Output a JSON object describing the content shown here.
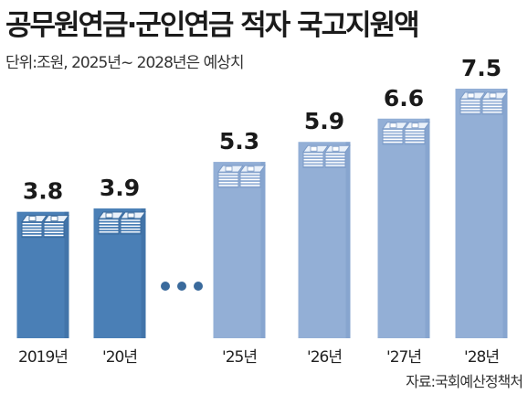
{
  "title": "공무원연금·군인연금 적자 국고지원액",
  "subtitle": "단위:조원, 2025년~ 2028년은 예상치",
  "source": "자료:국회예산정책처",
  "colors": {
    "actual_bar": "#4a7fb6",
    "actual_bar_dark": "#3a6a9c",
    "forecast_bar": "#93afd6",
    "forecast_bar_dark": "#7c9bc7",
    "gap_dots": "#3a6a9c"
  },
  "chart_data": {
    "type": "bar",
    "categories": [
      "2019년",
      "'20년",
      "'25년",
      "'26년",
      "'27년",
      "'28년"
    ],
    "values": [
      3.8,
      3.9,
      5.3,
      5.9,
      6.6,
      7.5
    ],
    "value_labels": [
      "3.8",
      "3.9",
      "5.3",
      "5.9",
      "6.6",
      "7.5"
    ],
    "forecast": [
      false,
      false,
      true,
      true,
      true,
      true
    ],
    "gap_marker_after_index": 1,
    "ylim": [
      0,
      7.5
    ],
    "grid": false,
    "bar_icon": "stacked-banknotes-icon"
  }
}
